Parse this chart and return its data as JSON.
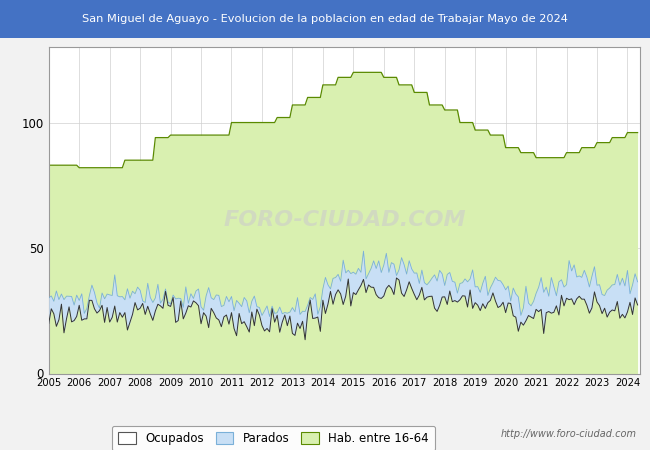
{
  "title": "San Miguel de Aguayo - Evolucion de la poblacion en edad de Trabajar Mayo de 2024",
  "title_bg": "#4472c4",
  "title_color": "#ffffff",
  "ylim": [
    0,
    130
  ],
  "yticks": [
    0,
    50,
    100
  ],
  "color_hab": "#d9f0b0",
  "color_hab_line": "#5a8a00",
  "color_parados_fill": "#c8dff5",
  "color_parados_line": "#7ab0d8",
  "color_ocupados_line": "#333333",
  "watermark": "FORO-CIUDAD.COM",
  "url": "http://www.foro-ciudad.com",
  "legend_labels": [
    "Ocupados",
    "Parados",
    "Hab. entre 16-64"
  ],
  "legend_fill": [
    "#ffffff",
    "#c8dff5",
    "#d9f0b0"
  ],
  "legend_edge": [
    "#555555",
    "#7ab0d8",
    "#5a8a00"
  ],
  "bg_color": "#f5f5f5",
  "plot_bg": "#ffffff"
}
